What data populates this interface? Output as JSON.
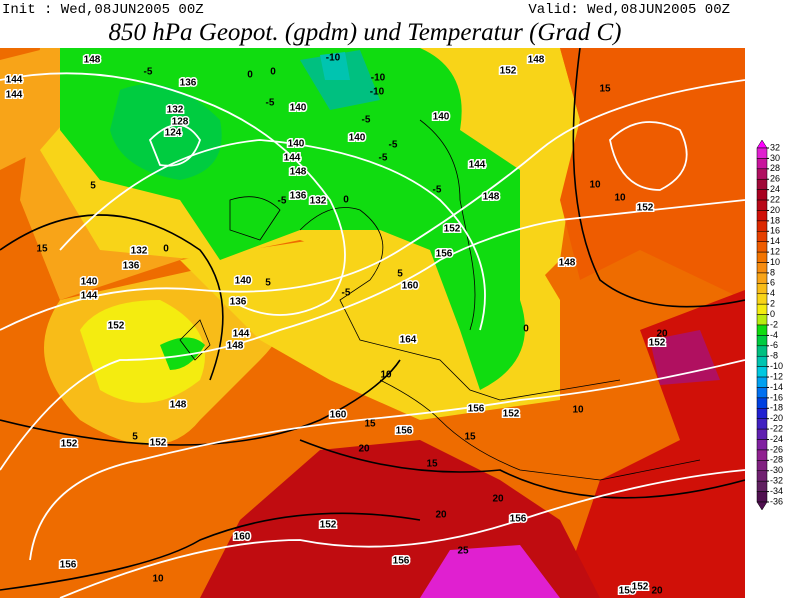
{
  "header": {
    "init": "Init : Wed,08JUN2005 00Z",
    "valid": "Valid: Wed,08JUN2005 00Z",
    "title": "850 hPa Geopot. (gpdm) und Temperatur (Grad C)"
  },
  "colorbar": {
    "ticks": [
      32,
      30,
      28,
      26,
      24,
      22,
      20,
      18,
      16,
      14,
      12,
      10,
      8,
      6,
      4,
      2,
      0,
      -2,
      -4,
      -6,
      -8,
      -10,
      -12,
      -14,
      -16,
      -18,
      -20,
      -22,
      -24,
      -26,
      -28,
      -30,
      -32,
      -34,
      -36
    ],
    "colors": [
      "#ff00ff",
      "#e020d0",
      "#c8149c",
      "#b01060",
      "#a00838",
      "#a80020",
      "#b80818",
      "#d01008",
      "#dc2800",
      "#e64000",
      "#ee5c00",
      "#f27400",
      "#f68c10",
      "#f8a418",
      "#f8bc18",
      "#f8d418",
      "#f4ec10",
      "#b8ec10",
      "#10dc10",
      "#00cc40",
      "#00c080",
      "#00c4b0",
      "#00c8e0",
      "#00a0f0",
      "#0070f0",
      "#0040e0",
      "#2020d0",
      "#4020c0",
      "#6020b0",
      "#8020a0",
      "#902090",
      "#802080",
      "#702070",
      "#602060",
      "#501050"
    ]
  },
  "contour_labels": [
    148,
    144,
    144,
    136,
    -5,
    132,
    128,
    124,
    0,
    -5,
    0,
    -10,
    -10,
    -10,
    140,
    -5,
    140,
    -5,
    152,
    148,
    15,
    140,
    144,
    148,
    10,
    152,
    10,
    -5,
    136,
    132,
    -5,
    140,
    0,
    -5,
    144,
    148,
    152,
    156,
    -5,
    5,
    148,
    132,
    136,
    140,
    144,
    15,
    0,
    5,
    140,
    136,
    144,
    148,
    152,
    5,
    160,
    164,
    10,
    0,
    152,
    20,
    152,
    148,
    5,
    152,
    156,
    160,
    15,
    160,
    15,
    156,
    152,
    10,
    20,
    15,
    156,
    20,
    152,
    156,
    10,
    156,
    25,
    20,
    156,
    152,
    20
  ]
}
